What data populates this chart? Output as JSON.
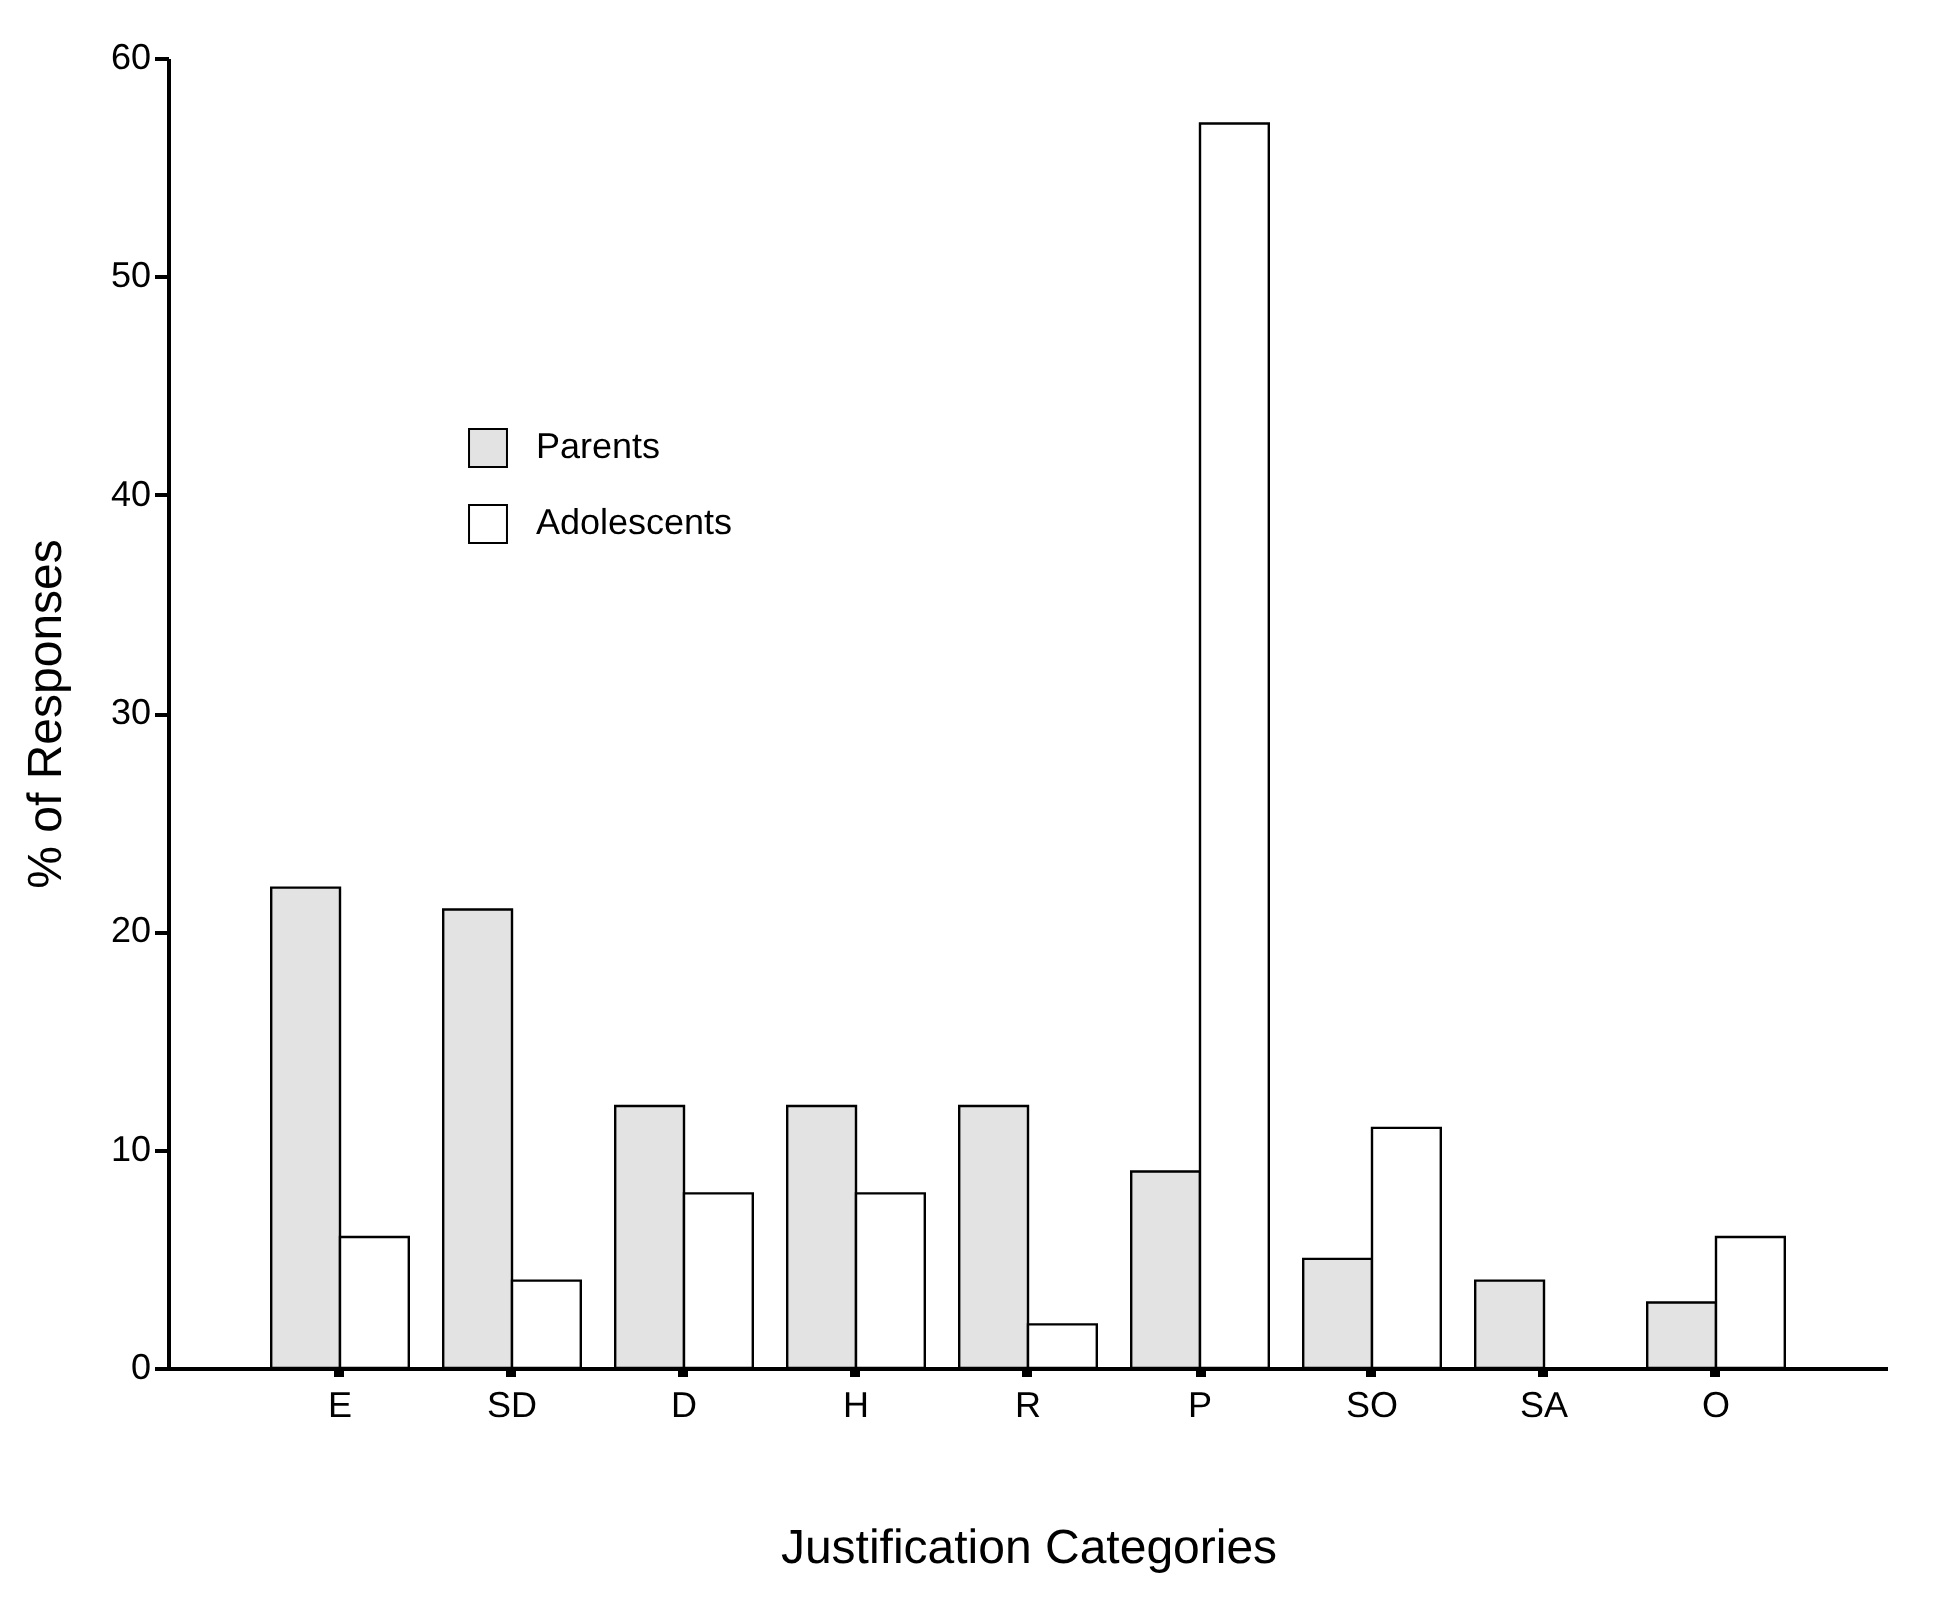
{
  "chart_data": {
    "type": "bar",
    "xlabel": "Justification Categories",
    "ylabel": "% of Responses",
    "categories": [
      "E",
      "SD",
      "D",
      "H",
      "R",
      "P",
      "SO",
      "SA",
      "O"
    ],
    "series": [
      {
        "name": "Parents",
        "color": "#e3e3e3",
        "values": [
          22,
          21,
          12,
          12,
          12,
          9,
          5,
          4,
          3
        ]
      },
      {
        "name": "Adolescents",
        "color": "#ffffff",
        "values": [
          6,
          4,
          8,
          8,
          2,
          57,
          11,
          null,
          6
        ]
      }
    ],
    "ylim": [
      0,
      60
    ],
    "yticks": [
      0,
      10,
      20,
      30,
      40,
      50,
      60
    ],
    "grid": false,
    "legend": "top left"
  }
}
